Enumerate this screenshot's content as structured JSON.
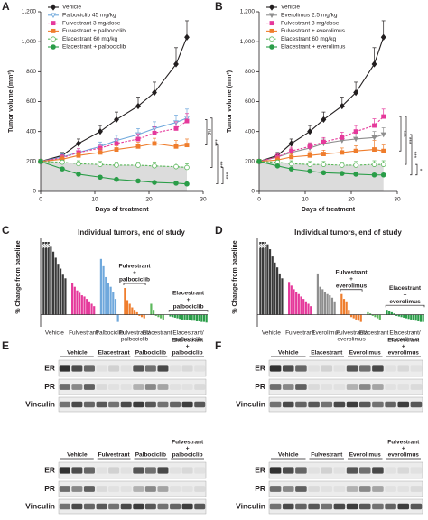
{
  "chart_data": [
    {
      "type": "line",
      "label": "A",
      "xlabel": "Days of treatment",
      "ylabel": "Tumor volume (mm³)",
      "x": [
        0,
        4,
        7,
        11,
        14,
        18,
        21,
        25,
        27
      ],
      "xlim": [
        0,
        30
      ],
      "xticks": [
        0,
        10,
        20,
        30
      ],
      "ylim": [
        0,
        1200
      ],
      "yticks": [
        0,
        200,
        400,
        600,
        800,
        {
          "value": 1000,
          "label": "1,000"
        },
        {
          "value": 1200,
          "label": "1,200"
        }
      ],
      "series": [
        {
          "name": "Vehicle",
          "color": "#231f20",
          "marker": "diamond",
          "open": false,
          "dashed": false,
          "values": [
            200,
            240,
            320,
            400,
            480,
            570,
            660,
            850,
            1030
          ],
          "errors": [
            10,
            20,
            30,
            40,
            50,
            60,
            70,
            110,
            110
          ]
        },
        {
          "name": "Palbociclib 45 mg/kg",
          "color": "#6fa8dc",
          "marker": "triangle",
          "open": true,
          "dashed": false,
          "values": [
            200,
            230,
            260,
            300,
            340,
            380,
            420,
            460,
            490
          ],
          "errors": [
            15,
            20,
            25,
            30,
            35,
            40,
            45,
            50,
            60
          ]
        },
        {
          "name": "Fulvestrant 3 mg/dose",
          "color": "#e5399b",
          "marker": "square",
          "open": false,
          "dashed": true,
          "values": [
            200,
            225,
            260,
            290,
            320,
            350,
            390,
            420,
            470
          ],
          "errors": [
            15,
            20,
            25,
            25,
            30,
            35,
            40,
            45,
            50
          ]
        },
        {
          "name": "Fulvestrant + palbociclib",
          "color": "#ef7d2d",
          "marker": "square",
          "open": false,
          "dashed": false,
          "values": [
            200,
            215,
            240,
            260,
            280,
            300,
            320,
            300,
            310
          ],
          "errors": [
            15,
            20,
            20,
            25,
            25,
            30,
            35,
            40,
            40
          ]
        },
        {
          "name": "Elacestrant 60 mg/kg",
          "color": "#5cb85c",
          "marker": "circle",
          "open": true,
          "dashed": true,
          "shade": true,
          "values": [
            200,
            195,
            185,
            180,
            175,
            175,
            170,
            165,
            160
          ],
          "errors": [
            15,
            15,
            20,
            20,
            20,
            20,
            25,
            25,
            25
          ]
        },
        {
          "name": "Elacestrant + palbociclib",
          "color": "#2a9d48",
          "marker": "circle",
          "open": false,
          "dashed": false,
          "values": [
            200,
            150,
            115,
            95,
            80,
            70,
            60,
            55,
            50
          ],
          "errors": [
            10,
            10,
            10,
            10,
            10,
            10,
            10,
            10,
            10
          ]
        }
      ],
      "annotations": [
        {
          "text": "ns",
          "y": [
            480,
            310
          ]
        },
        {
          "text": "***",
          "y": [
            490,
            160
          ]
        },
        {
          "text": "***",
          "y": [
            310,
            50
          ]
        },
        {
          "text": "***",
          "y": [
            160,
            50
          ]
        }
      ]
    },
    {
      "type": "line",
      "label": "B",
      "xlabel": "Days of treatment",
      "ylabel": "Tumor volume (mm³)",
      "x": [
        0,
        4,
        7,
        11,
        14,
        18,
        21,
        25,
        27
      ],
      "xlim": [
        0,
        30
      ],
      "xticks": [
        0,
        10,
        20,
        30
      ],
      "ylim": [
        0,
        1200
      ],
      "yticks": [
        0,
        200,
        400,
        600,
        800,
        {
          "value": 1000,
          "label": "1,000"
        },
        {
          "value": 1200,
          "label": "1,200"
        }
      ],
      "series": [
        {
          "name": "Vehicle",
          "color": "#231f20",
          "marker": "diamond",
          "open": false,
          "dashed": false,
          "values": [
            200,
            240,
            320,
            400,
            480,
            570,
            660,
            850,
            1030
          ],
          "errors": [
            10,
            20,
            30,
            40,
            50,
            60,
            70,
            110,
            110
          ]
        },
        {
          "name": "Everolimus 2.5 mg/kg",
          "color": "#8e8e8e",
          "marker": "triangle",
          "open": false,
          "dashed": false,
          "values": [
            200,
            230,
            260,
            290,
            320,
            340,
            350,
            360,
            380
          ],
          "errors": [
            15,
            20,
            25,
            30,
            30,
            35,
            40,
            40,
            45
          ]
        },
        {
          "name": "Fulvestrant 3 mg/dose",
          "color": "#e5399b",
          "marker": "square",
          "open": false,
          "dashed": true,
          "values": [
            200,
            230,
            270,
            300,
            330,
            360,
            400,
            440,
            500
          ],
          "errors": [
            15,
            20,
            25,
            25,
            30,
            35,
            40,
            45,
            50
          ]
        },
        {
          "name": "Fulvestrant + everolimus",
          "color": "#ef7d2d",
          "marker": "square",
          "open": false,
          "dashed": false,
          "values": [
            200,
            210,
            230,
            240,
            250,
            260,
            270,
            280,
            270
          ],
          "errors": [
            15,
            20,
            20,
            25,
            25,
            30,
            35,
            60,
            40
          ]
        },
        {
          "name": "Elacestrant 60 mg/kg",
          "color": "#5cb85c",
          "marker": "circle",
          "open": true,
          "dashed": true,
          "shade": true,
          "values": [
            200,
            195,
            185,
            180,
            180,
            175,
            175,
            180,
            180
          ],
          "errors": [
            15,
            15,
            20,
            20,
            20,
            20,
            25,
            25,
            25
          ]
        },
        {
          "name": "Elacestrant + everolimus",
          "color": "#2a9d48",
          "marker": "circle",
          "open": false,
          "dashed": false,
          "values": [
            200,
            170,
            150,
            135,
            125,
            120,
            115,
            110,
            110
          ],
          "errors": [
            10,
            10,
            10,
            10,
            10,
            10,
            10,
            10,
            10
          ]
        }
      ],
      "annotations": [
        {
          "text": "***",
          "y": [
            500,
            270
          ]
        },
        {
          "text": "***",
          "y": [
            500,
            180
          ]
        },
        {
          "text": "***",
          "y": [
            380,
            110
          ]
        },
        {
          "text": "*",
          "y": [
            180,
            110
          ]
        }
      ]
    },
    {
      "type": "waterfall",
      "label": "C",
      "title": "Individual tumors, end of study",
      "ylabel": "% Change from baseline",
      "ylim": [
        -100,
        600
      ],
      "series": [
        {
          "name": "Vehicle",
          "color": "#3a3a3a",
          "values": [
            600,
            600,
            600,
            560,
            520,
            470,
            420,
            380,
            330,
            300
          ]
        },
        {
          "name": "Fulvestrant",
          "color": "#e5399b",
          "values": [
            260,
            230,
            200,
            180,
            160,
            150,
            130,
            110,
            90,
            70
          ]
        },
        {
          "name": "Palbociclib",
          "color": "#6fa8dc",
          "values": [
            460,
            400,
            310,
            260,
            230,
            190,
            130,
            -60
          ]
        },
        {
          "name": [
            "Fulvestrant/",
            "palbociclib"
          ],
          "color": "#ef7d2d",
          "values": [
            220,
            120,
            90,
            60,
            40,
            20,
            -10,
            -20,
            -30
          ]
        },
        {
          "name": "Elacestrant",
          "color": "#5cb85c",
          "values": [
            90,
            40,
            -10,
            -20,
            -30,
            -40
          ]
        },
        {
          "name": [
            "Elacestrant/",
            "palbociclib"
          ],
          "color": "#2a9d48",
          "values": [
            -15,
            -20,
            -25,
            -30,
            -35,
            -40,
            -40,
            -45,
            -45,
            -50,
            -50,
            -55,
            -55,
            -60,
            -60,
            -65
          ]
        }
      ],
      "annotations": [
        {
          "text": [
            "Fulvestrant",
            "+",
            "palbociclib"
          ],
          "color": "#ef7d2d",
          "series": 3
        },
        {
          "text": [
            "Elacestrant",
            "+",
            "palbociclib"
          ],
          "color": "#2a9d48",
          "series": 5
        }
      ]
    },
    {
      "type": "waterfall",
      "label": "D",
      "title": "Individual tumors, end of study",
      "ylabel": "% Change from baseline",
      "ylim": [
        -100,
        600
      ],
      "series": [
        {
          "name": "Vehicle",
          "color": "#3a3a3a",
          "values": [
            600,
            600,
            600,
            580,
            540,
            480,
            430,
            390,
            340,
            300
          ]
        },
        {
          "name": "Fulvestrant",
          "color": "#e5399b",
          "values": [
            270,
            240,
            210,
            190,
            170,
            150,
            130,
            110,
            90,
            70
          ]
        },
        {
          "name": "Everolimus",
          "color": "#8e8e8e",
          "values": [
            340,
            230,
            210,
            190,
            170,
            160,
            140,
            110
          ]
        },
        {
          "name": [
            "Fulvestrant/",
            "everolimus"
          ],
          "color": "#ef7d2d",
          "values": [
            170,
            130,
            110,
            40,
            -20,
            -30,
            -40,
            -50,
            -60
          ]
        },
        {
          "name": "Elacestrant",
          "color": "#5cb85c",
          "values": [
            20,
            10,
            -10,
            -20,
            -30,
            -40
          ]
        },
        {
          "name": [
            "Elacestrant/",
            "everolimus"
          ],
          "color": "#2a9d48",
          "values": [
            40,
            30,
            20,
            10,
            -10,
            -15,
            -20,
            -25,
            -30,
            -35,
            -40,
            -45,
            -50,
            -55,
            -60,
            -60
          ]
        }
      ],
      "annotations": [
        {
          "text": [
            "Fulvestrant",
            "+",
            "everolimus"
          ],
          "color": "#ef7d2d",
          "series": 3
        },
        {
          "text": [
            "Elacestrant",
            "+",
            "everolimus"
          ],
          "color": "#2a9d48",
          "series": 5
        }
      ]
    }
  ],
  "blots": [
    {
      "label": "E",
      "blocks": [
        {
          "groups": [
            "Vehicle",
            "Elacestrant",
            "Palbociclib",
            [
              "Elacestrant",
              "+",
              "palbociclib"
            ]
          ],
          "rows": [
            "ER",
            "PR",
            "Vinculin"
          ]
        },
        {
          "groups": [
            "Vehicle",
            "Fulvestrant",
            "Palbociclib",
            [
              "Fulvestrant",
              "+",
              "palbociclib"
            ]
          ],
          "rows": [
            "ER",
            "PR",
            "Vinculin"
          ]
        }
      ]
    },
    {
      "label": "F",
      "blocks": [
        {
          "groups": [
            "Vehicle",
            "Elacestrant",
            "Everolimus",
            [
              "Elacestrant",
              "+",
              "everolimus"
            ]
          ],
          "rows": [
            "ER",
            "PR",
            "Vinculin"
          ]
        },
        {
          "groups": [
            "Vehicle",
            "Fulvestrant",
            "Everolimus",
            [
              "Fulvestrant",
              "+",
              "everolimus"
            ]
          ],
          "rows": [
            "ER",
            "PR",
            "Vinculin"
          ]
        }
      ]
    }
  ]
}
